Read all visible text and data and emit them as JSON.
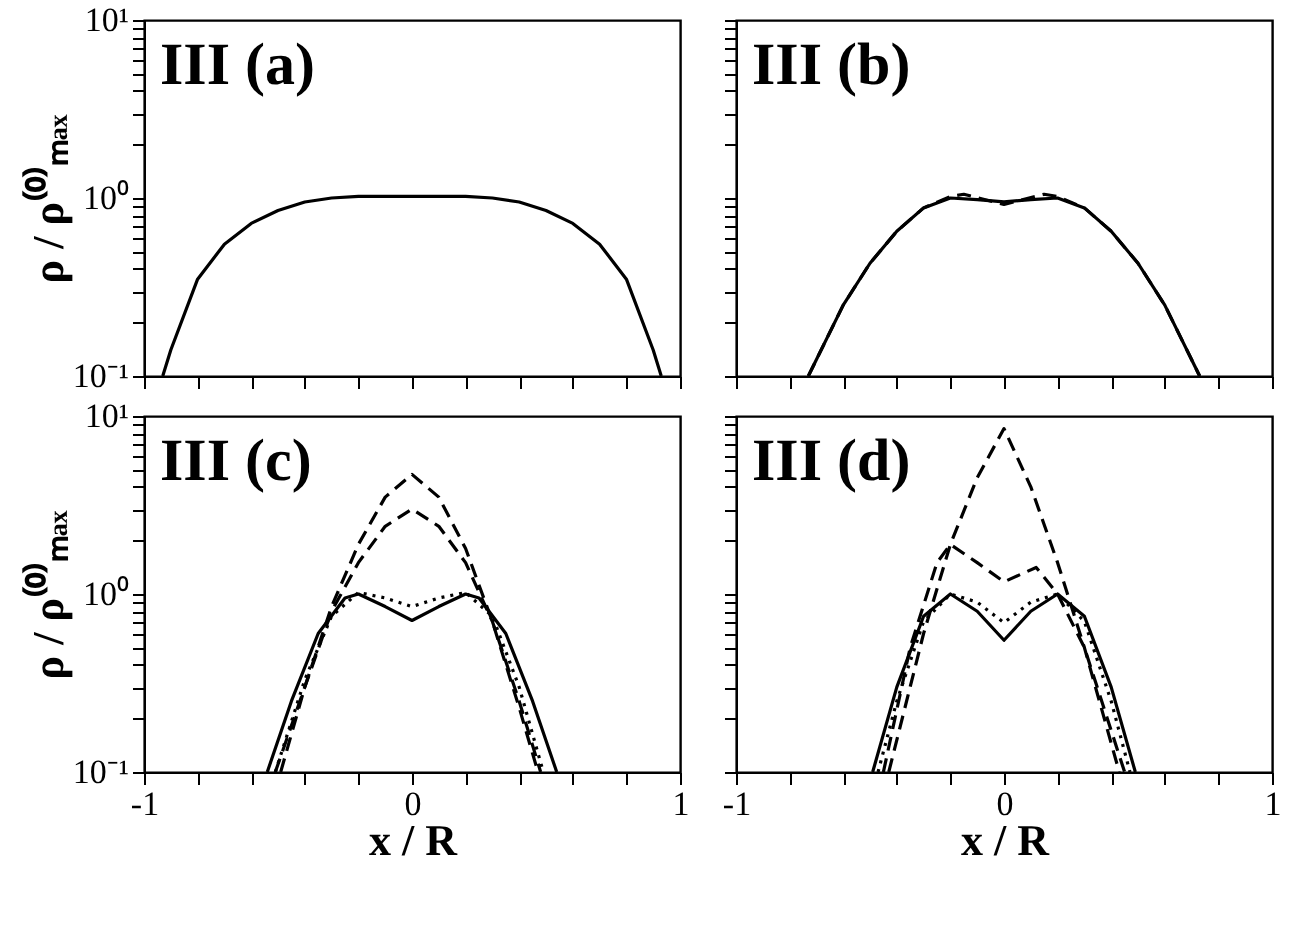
{
  "chart_data": [
    {
      "type": "line",
      "annotations": [
        "III (a)"
      ],
      "ylabel": "ρ / ρ⁽⁰⁾ₘₐₓ",
      "log": "y",
      "tick_labels": "y",
      "xlim": [
        -1,
        1
      ],
      "ylim": [
        0.1,
        10
      ],
      "xticks": [
        -1,
        {
          "value": -0.8,
          "label": null
        },
        {
          "value": -0.6,
          "label": null
        },
        {
          "value": -0.4,
          "label": null
        },
        {
          "value": -0.2,
          "label": null
        },
        0,
        {
          "value": 0.2,
          "label": null
        },
        {
          "value": 0.4,
          "label": null
        },
        {
          "value": 0.6,
          "label": null
        },
        {
          "value": 0.8,
          "label": null
        },
        1
      ],
      "yticks": [
        {
          "value": 0.1,
          "label": "10⁻¹"
        },
        {
          "value": 0.2,
          "label": null
        },
        {
          "value": 0.3,
          "label": null
        },
        {
          "value": 0.4,
          "label": null
        },
        {
          "value": 0.5,
          "label": null
        },
        {
          "value": 0.6,
          "label": null
        },
        {
          "value": 0.7,
          "label": null
        },
        {
          "value": 0.8,
          "label": null
        },
        {
          "value": 0.9,
          "label": null
        },
        {
          "value": 1,
          "label": "10⁰"
        },
        {
          "value": 2,
          "label": null
        },
        {
          "value": 3,
          "label": null
        },
        {
          "value": 4,
          "label": null
        },
        {
          "value": 5,
          "label": null
        },
        {
          "value": 6,
          "label": null
        },
        {
          "value": 7,
          "label": null
        },
        {
          "value": 8,
          "label": null
        },
        {
          "value": 9,
          "label": null
        },
        {
          "value": 10,
          "label": "10¹"
        }
      ],
      "series": [
        {
          "color": "#000000",
          "line_style": "solid",
          "x": [
            -0.93,
            -0.9,
            -0.8,
            -0.7,
            -0.6,
            -0.5,
            -0.4,
            -0.3,
            -0.2,
            0,
            0.2,
            0.3,
            0.4,
            0.5,
            0.6,
            0.7,
            0.8,
            0.9,
            0.93
          ],
          "values": [
            0.1,
            0.14,
            0.35,
            0.55,
            0.72,
            0.85,
            0.95,
            1.0,
            1.02,
            1.02,
            1.02,
            1.0,
            0.95,
            0.85,
            0.72,
            0.55,
            0.35,
            0.14,
            0.1
          ]
        }
      ]
    },
    {
      "type": "line",
      "annotations": [
        "III (b)"
      ],
      "log": "y",
      "tick_labels": false,
      "xlim": [
        -1,
        1
      ],
      "ylim": [
        0.1,
        10
      ],
      "xticks": [
        -1,
        -0.8,
        -0.6,
        -0.4,
        -0.2,
        0,
        0.2,
        0.4,
        0.6,
        0.8,
        1
      ],
      "yticks": [
        0.1,
        0.2,
        0.3,
        0.4,
        0.5,
        0.6,
        0.7,
        0.8,
        0.9,
        1,
        2,
        3,
        4,
        5,
        6,
        7,
        8,
        9,
        10
      ],
      "series": [
        {
          "color": "#000000",
          "line_style": "solid",
          "x": [
            -0.73,
            -0.6,
            -0.5,
            -0.4,
            -0.3,
            -0.2,
            -0.1,
            0,
            0.1,
            0.2,
            0.3,
            0.4,
            0.5,
            0.6,
            0.73
          ],
          "values": [
            0.1,
            0.25,
            0.43,
            0.65,
            0.88,
            1.0,
            0.98,
            0.95,
            0.98,
            1.0,
            0.88,
            0.65,
            0.43,
            0.25,
            0.1
          ]
        },
        {
          "color": "#000000",
          "line_style": "dashed",
          "x": [
            -0.73,
            -0.6,
            -0.5,
            -0.4,
            -0.3,
            -0.2,
            -0.15,
            0,
            0.15,
            0.2,
            0.3,
            0.4,
            0.5,
            0.6,
            0.73
          ],
          "values": [
            0.1,
            0.25,
            0.43,
            0.65,
            0.88,
            1.02,
            1.05,
            0.92,
            1.05,
            1.02,
            0.88,
            0.65,
            0.43,
            0.25,
            0.1
          ]
        }
      ]
    },
    {
      "type": "line",
      "annotations": [
        "III (c)"
      ],
      "xlabel": "x / R",
      "ylabel": "ρ / ρ⁽⁰⁾ₘₐₓ",
      "log": "y",
      "xlim": [
        -1,
        1
      ],
      "ylim": [
        0.1,
        10
      ],
      "xticks": [
        -1,
        {
          "value": -0.8,
          "label": null
        },
        {
          "value": -0.6,
          "label": null
        },
        {
          "value": -0.4,
          "label": null
        },
        {
          "value": -0.2,
          "label": null
        },
        0,
        {
          "value": 0.2,
          "label": null
        },
        {
          "value": 0.4,
          "label": null
        },
        {
          "value": 0.6,
          "label": null
        },
        {
          "value": 0.8,
          "label": null
        },
        1
      ],
      "yticks": [
        {
          "value": 0.1,
          "label": "10⁻¹"
        },
        {
          "value": 0.2,
          "label": null
        },
        {
          "value": 0.3,
          "label": null
        },
        {
          "value": 0.4,
          "label": null
        },
        {
          "value": 0.5,
          "label": null
        },
        {
          "value": 0.6,
          "label": null
        },
        {
          "value": 0.7,
          "label": null
        },
        {
          "value": 0.8,
          "label": null
        },
        {
          "value": 0.9,
          "label": null
        },
        {
          "value": 1,
          "label": "10⁰"
        },
        {
          "value": 2,
          "label": null
        },
        {
          "value": 3,
          "label": null
        },
        {
          "value": 4,
          "label": null
        },
        {
          "value": 5,
          "label": null
        },
        {
          "value": 6,
          "label": null
        },
        {
          "value": 7,
          "label": null
        },
        {
          "value": 8,
          "label": null
        },
        {
          "value": 9,
          "label": null
        },
        {
          "value": 10,
          "label": "10¹"
        }
      ],
      "series": [
        {
          "color": "#000000",
          "line_style": "solid",
          "x": [
            -0.54,
            -0.45,
            -0.35,
            -0.25,
            -0.2,
            -0.1,
            0,
            0.1,
            0.2,
            0.25,
            0.35,
            0.45,
            0.54
          ],
          "values": [
            0.1,
            0.25,
            0.6,
            0.95,
            1.0,
            0.85,
            0.71,
            0.85,
            1.0,
            0.95,
            0.6,
            0.25,
            0.1
          ]
        },
        {
          "color": "#000000",
          "line_style": "dotted",
          "x": [
            -0.51,
            -0.4,
            -0.3,
            -0.2,
            -0.1,
            0,
            0.1,
            0.2,
            0.3,
            0.4,
            0.49
          ],
          "values": [
            0.1,
            0.33,
            0.75,
            1.02,
            0.95,
            0.85,
            0.95,
            1.02,
            0.75,
            0.3,
            0.1
          ]
        },
        {
          "color": "#000000",
          "line_style": "dashed",
          "x": [
            -0.51,
            -0.4,
            -0.3,
            -0.2,
            -0.1,
            0,
            0.1,
            0.2,
            0.3,
            0.4,
            0.48
          ],
          "values": [
            0.1,
            0.3,
            0.8,
            1.5,
            2.4,
            3.0,
            2.4,
            1.5,
            0.7,
            0.25,
            0.1
          ]
        },
        {
          "color": "#000000",
          "line_style": "dashed",
          "x": [
            -0.49,
            -0.4,
            -0.3,
            -0.2,
            -0.1,
            0,
            0.1,
            0.2,
            0.3,
            0.4,
            0.47
          ],
          "values": [
            0.1,
            0.3,
            0.85,
            1.9,
            3.5,
            4.7,
            3.5,
            1.8,
            0.7,
            0.23,
            0.1
          ]
        }
      ]
    },
    {
      "type": "line",
      "annotations": [
        "III (d)"
      ],
      "xlabel": "x / R",
      "log": "y",
      "tick_labels": "x",
      "xlim": [
        -1,
        1
      ],
      "ylim": [
        0.1,
        10
      ],
      "xticks": [
        -1,
        {
          "value": -0.8,
          "label": null
        },
        {
          "value": -0.6,
          "label": null
        },
        {
          "value": -0.4,
          "label": null
        },
        {
          "value": -0.2,
          "label": null
        },
        0,
        {
          "value": 0.2,
          "label": null
        },
        {
          "value": 0.4,
          "label": null
        },
        {
          "value": 0.6,
          "label": null
        },
        {
          "value": 0.8,
          "label": null
        },
        1
      ],
      "yticks": [
        0.1,
        0.2,
        0.3,
        0.4,
        0.5,
        0.6,
        0.7,
        0.8,
        0.9,
        1,
        2,
        3,
        4,
        5,
        6,
        7,
        8,
        9,
        10
      ],
      "series": [
        {
          "color": "#000000",
          "line_style": "solid",
          "x": [
            -0.49,
            -0.4,
            -0.3,
            -0.2,
            -0.1,
            0,
            0.1,
            0.2,
            0.3,
            0.4,
            0.49
          ],
          "values": [
            0.1,
            0.3,
            0.75,
            1.0,
            0.8,
            0.55,
            0.8,
            1.0,
            0.75,
            0.3,
            0.1
          ]
        },
        {
          "color": "#000000",
          "line_style": "dotted",
          "x": [
            -0.47,
            -0.4,
            -0.3,
            -0.2,
            -0.1,
            0,
            0.1,
            0.2,
            0.3,
            0.4,
            0.47
          ],
          "values": [
            0.1,
            0.25,
            0.7,
            1.0,
            0.9,
            0.69,
            0.9,
            1.0,
            0.7,
            0.25,
            0.1
          ]
        },
        {
          "color": "#000000",
          "line_style": "dashed",
          "x": [
            -0.45,
            -0.35,
            -0.25,
            -0.2,
            -0.1,
            0,
            0.12,
            0.2,
            0.3,
            0.45
          ],
          "values": [
            0.1,
            0.5,
            1.5,
            1.9,
            1.5,
            1.17,
            1.41,
            1.0,
            0.5,
            0.1
          ]
        },
        {
          "color": "#000000",
          "line_style": "dashed",
          "x": [
            -0.43,
            -0.3,
            -0.2,
            -0.1,
            0,
            0.1,
            0.2,
            0.3,
            0.43
          ],
          "values": [
            0.1,
            0.6,
            1.9,
            4.5,
            8.5,
            4.0,
            1.5,
            0.5,
            0.1
          ]
        }
      ]
    }
  ]
}
